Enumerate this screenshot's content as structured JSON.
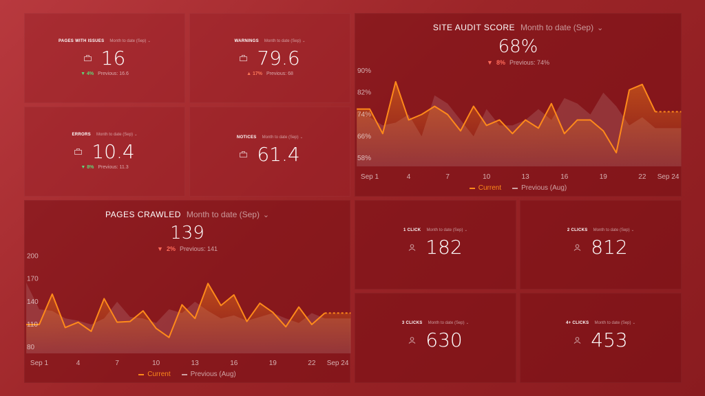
{
  "colors": {
    "current": "#ff8a1a",
    "previous": "#b26a6c",
    "up": "#5fd97a",
    "down": "#ff6b5a"
  },
  "kpis": {
    "pages_with_issues": {
      "title": "PAGES WITH ISSUES",
      "range": "Month to date (Sep)",
      "value": "16",
      "arrow": "▼",
      "delta": "4%",
      "previous": "Previous: 16.6",
      "icon": "briefcase-icon"
    },
    "warnings": {
      "title": "WARNINGS",
      "range": "Month to date (Sep)",
      "value": "79.6",
      "arrow": "▲",
      "delta": "17%",
      "previous": "Previous: 68",
      "icon": "briefcase-icon"
    },
    "errors": {
      "title": "ERRORS",
      "range": "Month to date (Sep)",
      "value": "10.4",
      "arrow": "▼",
      "delta": "8%",
      "previous": "Previous: 11.3",
      "icon": "briefcase-icon"
    },
    "notices": {
      "title": "NOTICES",
      "range": "Month to date (Sep)",
      "value": "61.4",
      "icon": "briefcase-icon"
    },
    "click1": {
      "title": "1 CLICK",
      "range": "Month to date (Sep)",
      "value": "182",
      "icon": "user-icon"
    },
    "click2": {
      "title": "2 CLICKS",
      "range": "Month to date (Sep)",
      "value": "812",
      "icon": "user-icon"
    },
    "click3": {
      "title": "3 CLICKS",
      "range": "Month to date (Sep)",
      "value": "630",
      "icon": "user-icon"
    },
    "click4": {
      "title": "4+ CLICKS",
      "range": "Month to date (Sep)",
      "value": "453",
      "icon": "user-icon"
    }
  },
  "audit": {
    "title": "SITE AUDIT SCORE",
    "range": "Month to date (Sep)",
    "value": "68%",
    "arrow": "▼",
    "delta": "8%",
    "previous": "Previous: 74%"
  },
  "crawled": {
    "title": "PAGES CRAWLED",
    "range": "Month to date (Sep)",
    "value": "139",
    "arrow": "▼",
    "delta": "2%",
    "previous": "Previous: 141"
  },
  "legend": {
    "current": "Current",
    "previous": "Previous (Aug)"
  },
  "chart_data": [
    {
      "type": "area",
      "title": "SITE AUDIT SCORE",
      "ylim": [
        55,
        92
      ],
      "y_ticks": [
        "90%",
        "82%",
        "74%",
        "66%",
        "58%"
      ],
      "y_tick_values": [
        90,
        82,
        74,
        66,
        58
      ],
      "x_ticks": [
        "Sep 1",
        "4",
        "7",
        "10",
        "13",
        "16",
        "19",
        "22",
        "Sep 24"
      ],
      "x_tick_days": [
        1,
        4,
        7,
        10,
        13,
        16,
        19,
        22,
        24
      ],
      "x_days": [
        0,
        1,
        2,
        3,
        4,
        5,
        6,
        7,
        8,
        9,
        10,
        11,
        12,
        13,
        14,
        15,
        16,
        17,
        18,
        19,
        20,
        21,
        22,
        23,
        24,
        25
      ],
      "series": [
        {
          "name": "Current",
          "values": [
            76,
            76,
            67,
            86,
            72,
            74,
            77,
            74,
            68,
            77,
            70,
            72,
            67,
            72,
            69,
            78,
            67,
            72,
            72,
            68,
            60,
            83,
            85,
            75,
            75,
            75
          ],
          "dashed_from_day": 23
        },
        {
          "name": "Previous (Aug)",
          "values": [
            75,
            73,
            70,
            71,
            74,
            66,
            81,
            78,
            72,
            66,
            76,
            70,
            70,
            72,
            76,
            72,
            80,
            78,
            74,
            82,
            77,
            70,
            73,
            69,
            69,
            69
          ]
        }
      ]
    },
    {
      "type": "area",
      "title": "PAGES CRAWLED",
      "ylim": [
        72,
        205
      ],
      "y_ticks": [
        "200",
        "170",
        "140",
        "110",
        "80"
      ],
      "y_tick_values": [
        200,
        170,
        140,
        110,
        80
      ],
      "x_ticks": [
        "Sep 1",
        "4",
        "7",
        "10",
        "13",
        "16",
        "19",
        "22",
        "Sep 24"
      ],
      "x_tick_days": [
        1,
        4,
        7,
        10,
        13,
        16,
        19,
        22,
        24
      ],
      "x_days": [
        0,
        1,
        2,
        3,
        4,
        5,
        6,
        7,
        8,
        9,
        10,
        11,
        12,
        13,
        14,
        15,
        16,
        17,
        18,
        19,
        20,
        21,
        22,
        23,
        24,
        25
      ],
      "series": [
        {
          "name": "Current",
          "values": [
            110,
            110,
            150,
            106,
            113,
            101,
            144,
            113,
            114,
            128,
            105,
            93,
            136,
            118,
            164,
            135,
            149,
            114,
            138,
            126,
            107,
            133,
            110,
            125,
            125,
            125
          ],
          "dashed_from_day": 23
        },
        {
          "name": "Previous (Aug)",
          "values": [
            165,
            130,
            128,
            118,
            115,
            110,
            118,
            140,
            120,
            118,
            112,
            130,
            125,
            140,
            128,
            118,
            122,
            115,
            120,
            125,
            118,
            112,
            125,
            118,
            118,
            118
          ]
        }
      ]
    }
  ]
}
